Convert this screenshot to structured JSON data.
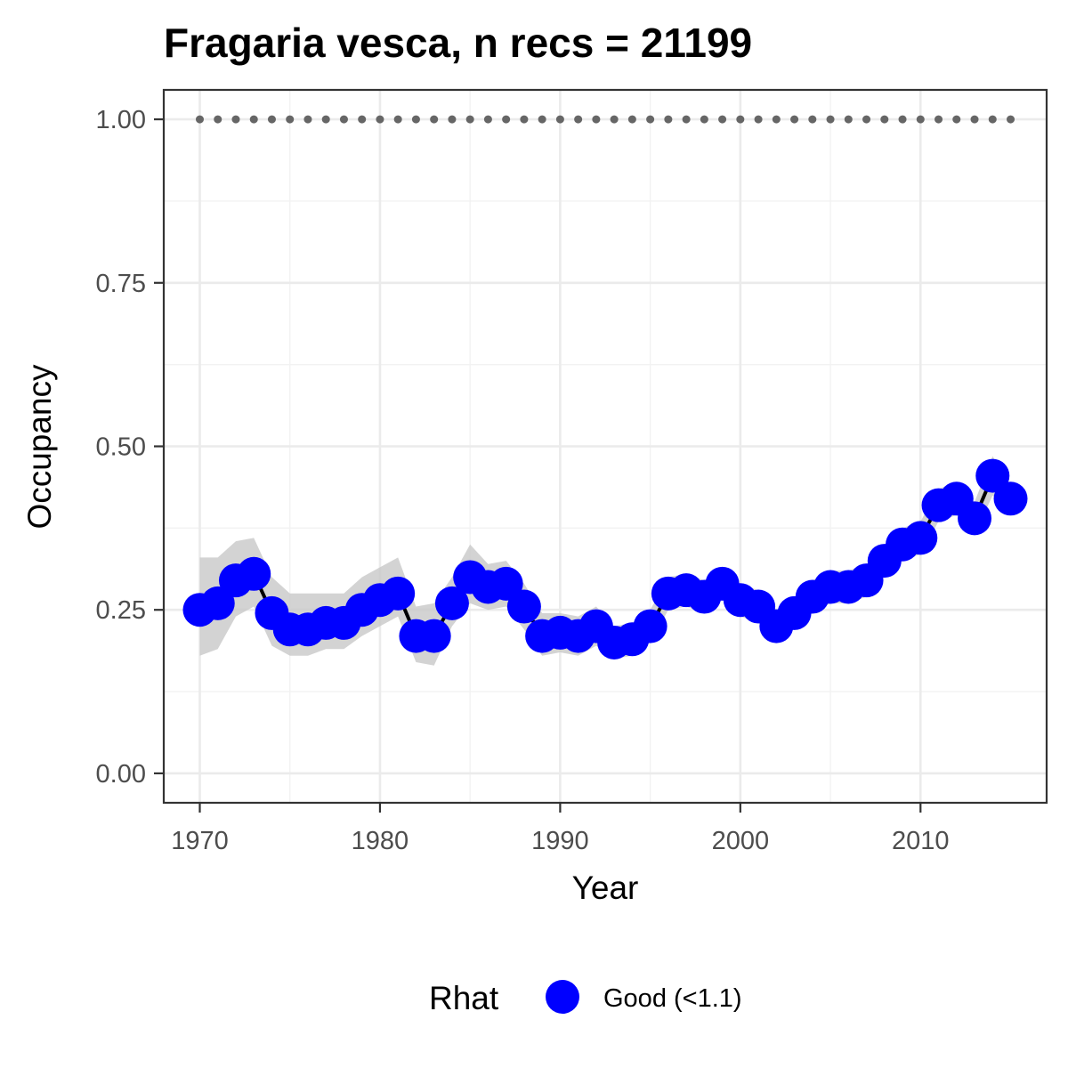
{
  "chart_data": {
    "type": "line",
    "title": "Fragaria vesca, n recs = 21199",
    "xlabel": "Year",
    "ylabel": "Occupancy",
    "xlim": [
      1968,
      2017
    ],
    "ylim": [
      -0.045,
      1.045
    ],
    "x_ticks": [
      1970,
      1980,
      1990,
      2000,
      2010
    ],
    "x_tick_labels": [
      "1970",
      "1980",
      "1990",
      "2000",
      "2010"
    ],
    "y_ticks": [
      0,
      0.25,
      0.5,
      0.75,
      1.0
    ],
    "y_tick_labels": [
      "0.00",
      "0.25",
      "0.50",
      "0.75",
      "1.00"
    ],
    "grid": true,
    "legend_position": "bottom",
    "legend_title": "Rhat",
    "x": [
      1970,
      1971,
      1972,
      1973,
      1974,
      1975,
      1976,
      1977,
      1978,
      1979,
      1980,
      1981,
      1982,
      1983,
      1984,
      1985,
      1986,
      1987,
      1988,
      1989,
      1990,
      1991,
      1992,
      1993,
      1994,
      1995,
      1996,
      1997,
      1998,
      1999,
      2000,
      2001,
      2002,
      2003,
      2004,
      2005,
      2006,
      2007,
      2008,
      2009,
      2010,
      2011,
      2012,
      2013,
      2014,
      2015
    ],
    "series": [
      {
        "name": "Good (<1.1)",
        "color": "#0000ff",
        "values": [
          0.25,
          0.26,
          0.295,
          0.305,
          0.245,
          0.22,
          0.22,
          0.23,
          0.23,
          0.25,
          0.265,
          0.275,
          0.21,
          0.21,
          0.26,
          0.3,
          0.285,
          0.29,
          0.255,
          0.21,
          0.215,
          0.21,
          0.225,
          0.2,
          0.205,
          0.225,
          0.275,
          0.28,
          0.27,
          0.29,
          0.265,
          0.255,
          0.225,
          0.245,
          0.27,
          0.285,
          0.285,
          0.295,
          0.325,
          0.35,
          0.36,
          0.41,
          0.42,
          0.39,
          0.455,
          0.42
        ],
        "lower": [
          0.18,
          0.19,
          0.24,
          0.255,
          0.195,
          0.18,
          0.18,
          0.19,
          0.19,
          0.21,
          0.225,
          0.24,
          0.17,
          0.165,
          0.225,
          0.26,
          0.25,
          0.255,
          0.22,
          0.18,
          0.185,
          0.18,
          0.195,
          0.175,
          0.18,
          0.2,
          0.25,
          0.255,
          0.245,
          0.265,
          0.24,
          0.23,
          0.205,
          0.225,
          0.245,
          0.26,
          0.26,
          0.27,
          0.3,
          0.325,
          0.335,
          0.385,
          0.395,
          0.365,
          0.425,
          0.4
        ],
        "upper": [
          0.33,
          0.33,
          0.355,
          0.36,
          0.3,
          0.275,
          0.275,
          0.275,
          0.275,
          0.3,
          0.315,
          0.33,
          0.255,
          0.26,
          0.3,
          0.35,
          0.32,
          0.325,
          0.29,
          0.245,
          0.245,
          0.24,
          0.255,
          0.225,
          0.23,
          0.25,
          0.3,
          0.305,
          0.295,
          0.315,
          0.29,
          0.28,
          0.25,
          0.27,
          0.295,
          0.31,
          0.31,
          0.32,
          0.35,
          0.375,
          0.385,
          0.435,
          0.445,
          0.415,
          0.485,
          0.44
        ]
      }
    ],
    "reference_line": {
      "values": [
        1,
        1,
        1,
        1,
        1,
        1,
        1,
        1,
        1,
        1,
        1,
        1,
        1,
        1,
        1,
        1,
        1,
        1,
        1,
        1,
        1,
        1,
        1,
        1,
        1,
        1,
        1,
        1,
        1,
        1,
        1,
        1,
        1,
        1,
        1,
        1,
        1,
        1,
        1,
        1,
        1,
        1,
        1,
        1,
        1,
        1
      ],
      "color": "#666666"
    }
  }
}
